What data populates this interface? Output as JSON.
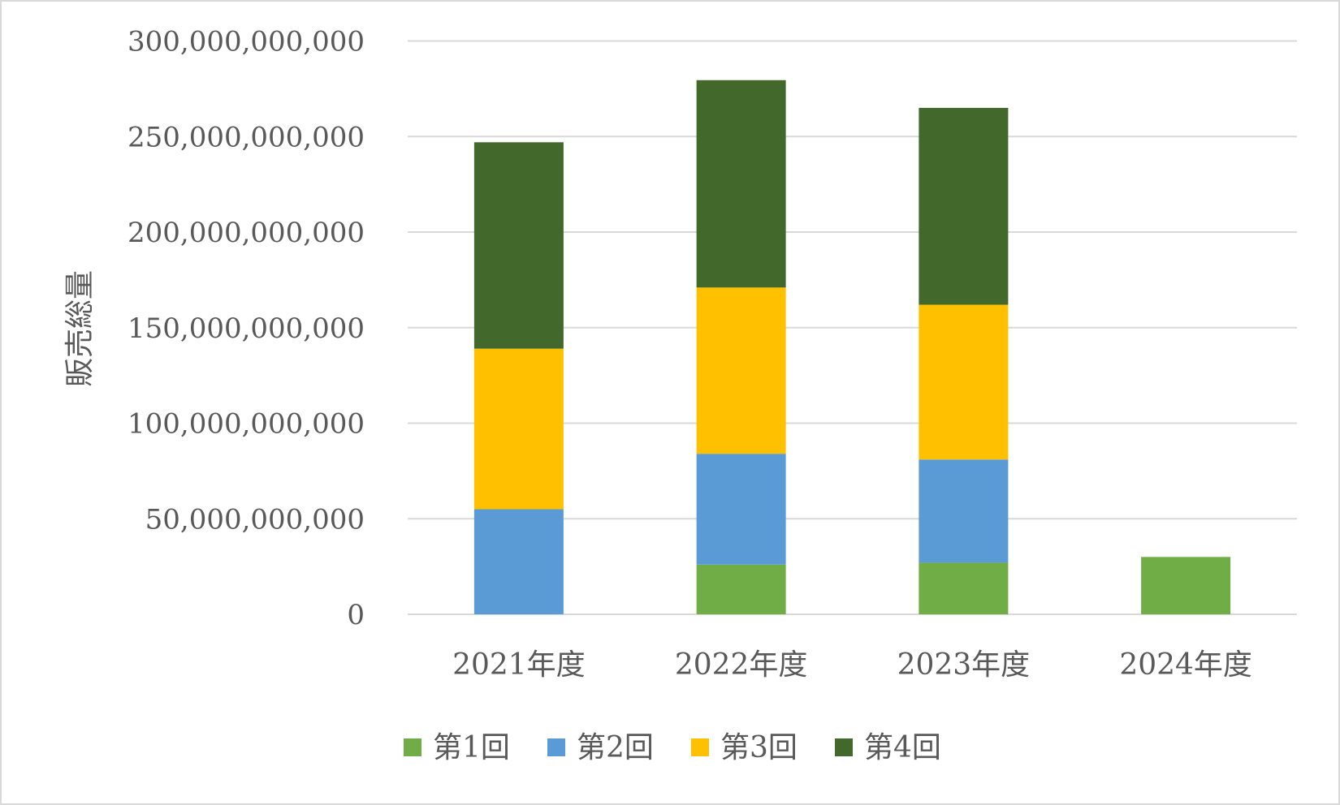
{
  "chart_data": {
    "type": "bar",
    "stacked": true,
    "title": "",
    "xlabel": "",
    "ylabel": "販売総量",
    "ylim": [
      0,
      300000000000
    ],
    "yticks": [
      0,
      50000000000,
      100000000000,
      150000000000,
      200000000000,
      250000000000,
      300000000000
    ],
    "ytick_labels": [
      "0",
      "50,000,000,000",
      "100,000,000,000",
      "150,000,000,000",
      "200,000,000,000",
      "250,000,000,000",
      "300,000,000,000"
    ],
    "grid": true,
    "legend_position": "bottom",
    "categories": [
      "2021年度",
      "2022年度",
      "2023年度",
      "2024年度"
    ],
    "series": [
      {
        "name": "第1回",
        "color": "#70ad47",
        "values": [
          0,
          26000000000,
          27000000000,
          30000000000
        ]
      },
      {
        "name": "第2回",
        "color": "#5b9bd5",
        "values": [
          55000000000,
          58000000000,
          54000000000,
          0
        ]
      },
      {
        "name": "第3回",
        "color": "#ffc000",
        "values": [
          84000000000,
          87000000000,
          81000000000,
          0
        ]
      },
      {
        "name": "第4回",
        "color": "#43682b",
        "values": [
          108000000000,
          108500000000,
          103000000000,
          0
        ]
      }
    ]
  }
}
